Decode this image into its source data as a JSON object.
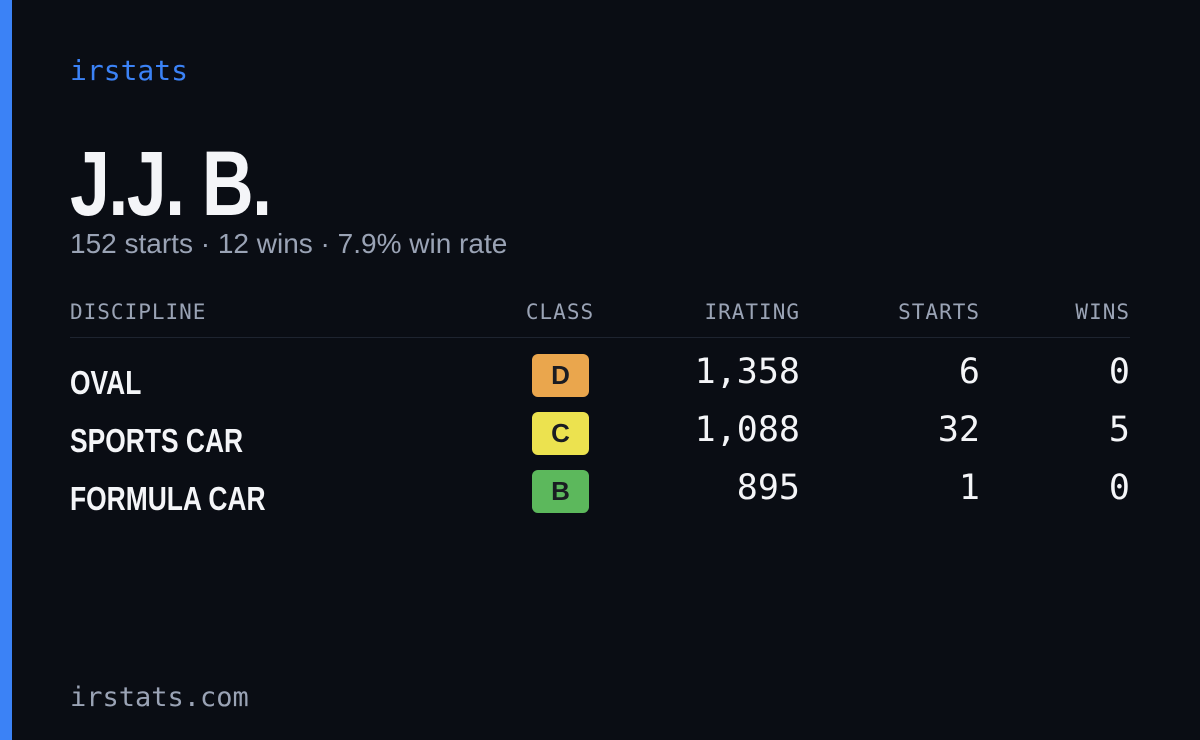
{
  "header": {
    "brand": "irstats",
    "name": "J.J. B.",
    "summary": "152 starts · 12 wins · 7.9% win rate"
  },
  "table": {
    "columns": [
      "DISCIPLINE",
      "CLASS",
      "IRATING",
      "STARTS",
      "WINS"
    ],
    "rows": [
      {
        "discipline": "OVAL",
        "class": "D",
        "class_color": "#eaa64d",
        "irating": "1,358",
        "starts": 6,
        "wins": 0
      },
      {
        "discipline": "SPORTS CAR",
        "class": "C",
        "class_color": "#ece24f",
        "irating": "1,088",
        "starts": 32,
        "wins": 5
      },
      {
        "discipline": "FORMULA CAR",
        "class": "B",
        "class_color": "#5cb85c",
        "irating": "895",
        "starts": 1,
        "wins": 0
      }
    ]
  },
  "footer": {
    "url": "irstats.com"
  }
}
